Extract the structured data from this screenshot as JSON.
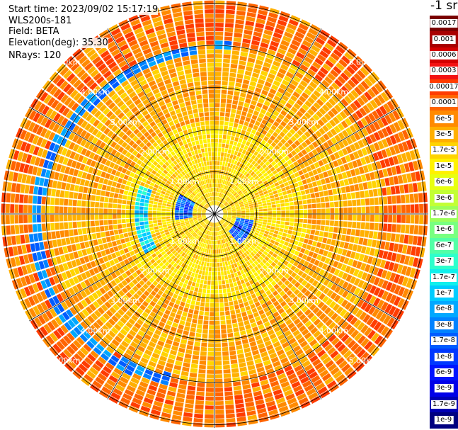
{
  "header": {
    "start_time": "Start time: 2023/09/02 15:17:19",
    "instrument": "WLS200s-181",
    "field": "Field: BETA",
    "elevation": "Elevation(deg): 35.30",
    "nrays": "NRays: 120"
  },
  "ppi": {
    "range_labels": [
      "1.00km",
      "2.00km",
      "3.00km",
      "4.00km",
      "5.00km"
    ],
    "spokes_deg": 30
  },
  "colorbar": {
    "unit_label": "-1 sr",
    "levels": [
      {
        "label": "0.0017",
        "color": "#7a0000"
      },
      {
        "label": "0.001",
        "color": "#a80000"
      },
      {
        "label": "0.0006",
        "color": "#d40000"
      },
      {
        "label": "0.0003",
        "color": "#f31212"
      },
      {
        "label": "0.00017",
        "color": "#ff3c00"
      },
      {
        "label": "0.0001",
        "color": "#ff6400"
      },
      {
        "label": "6e-5",
        "color": "#ff8a00"
      },
      {
        "label": "3e-5",
        "color": "#ffb000"
      },
      {
        "label": "1.7e-5",
        "color": "#ffd400"
      },
      {
        "label": "1e-5",
        "color": "#fff200"
      },
      {
        "label": "6e-6",
        "color": "#e8ff10"
      },
      {
        "label": "3e-6",
        "color": "#c2ff35"
      },
      {
        "label": "1.7e-6",
        "color": "#9cff5a"
      },
      {
        "label": "1e-6",
        "color": "#78ff80"
      },
      {
        "label": "6e-7",
        "color": "#52ffa6"
      },
      {
        "label": "3e-7",
        "color": "#2effcc"
      },
      {
        "label": "1.7e-7",
        "color": "#10f0ec"
      },
      {
        "label": "1e-7",
        "color": "#00ccff"
      },
      {
        "label": "6e-8",
        "color": "#00a8ff"
      },
      {
        "label": "3e-8",
        "color": "#0082ff"
      },
      {
        "label": "1.7e-8",
        "color": "#005cff"
      },
      {
        "label": "1e-8",
        "color": "#0038ff"
      },
      {
        "label": "6e-9",
        "color": "#0014ff"
      },
      {
        "label": "3e-9",
        "color": "#0000e8"
      },
      {
        "label": "1.7e-9",
        "color": "#0000b4"
      },
      {
        "label": "1e-9",
        "color": "#000080"
      }
    ]
  }
}
